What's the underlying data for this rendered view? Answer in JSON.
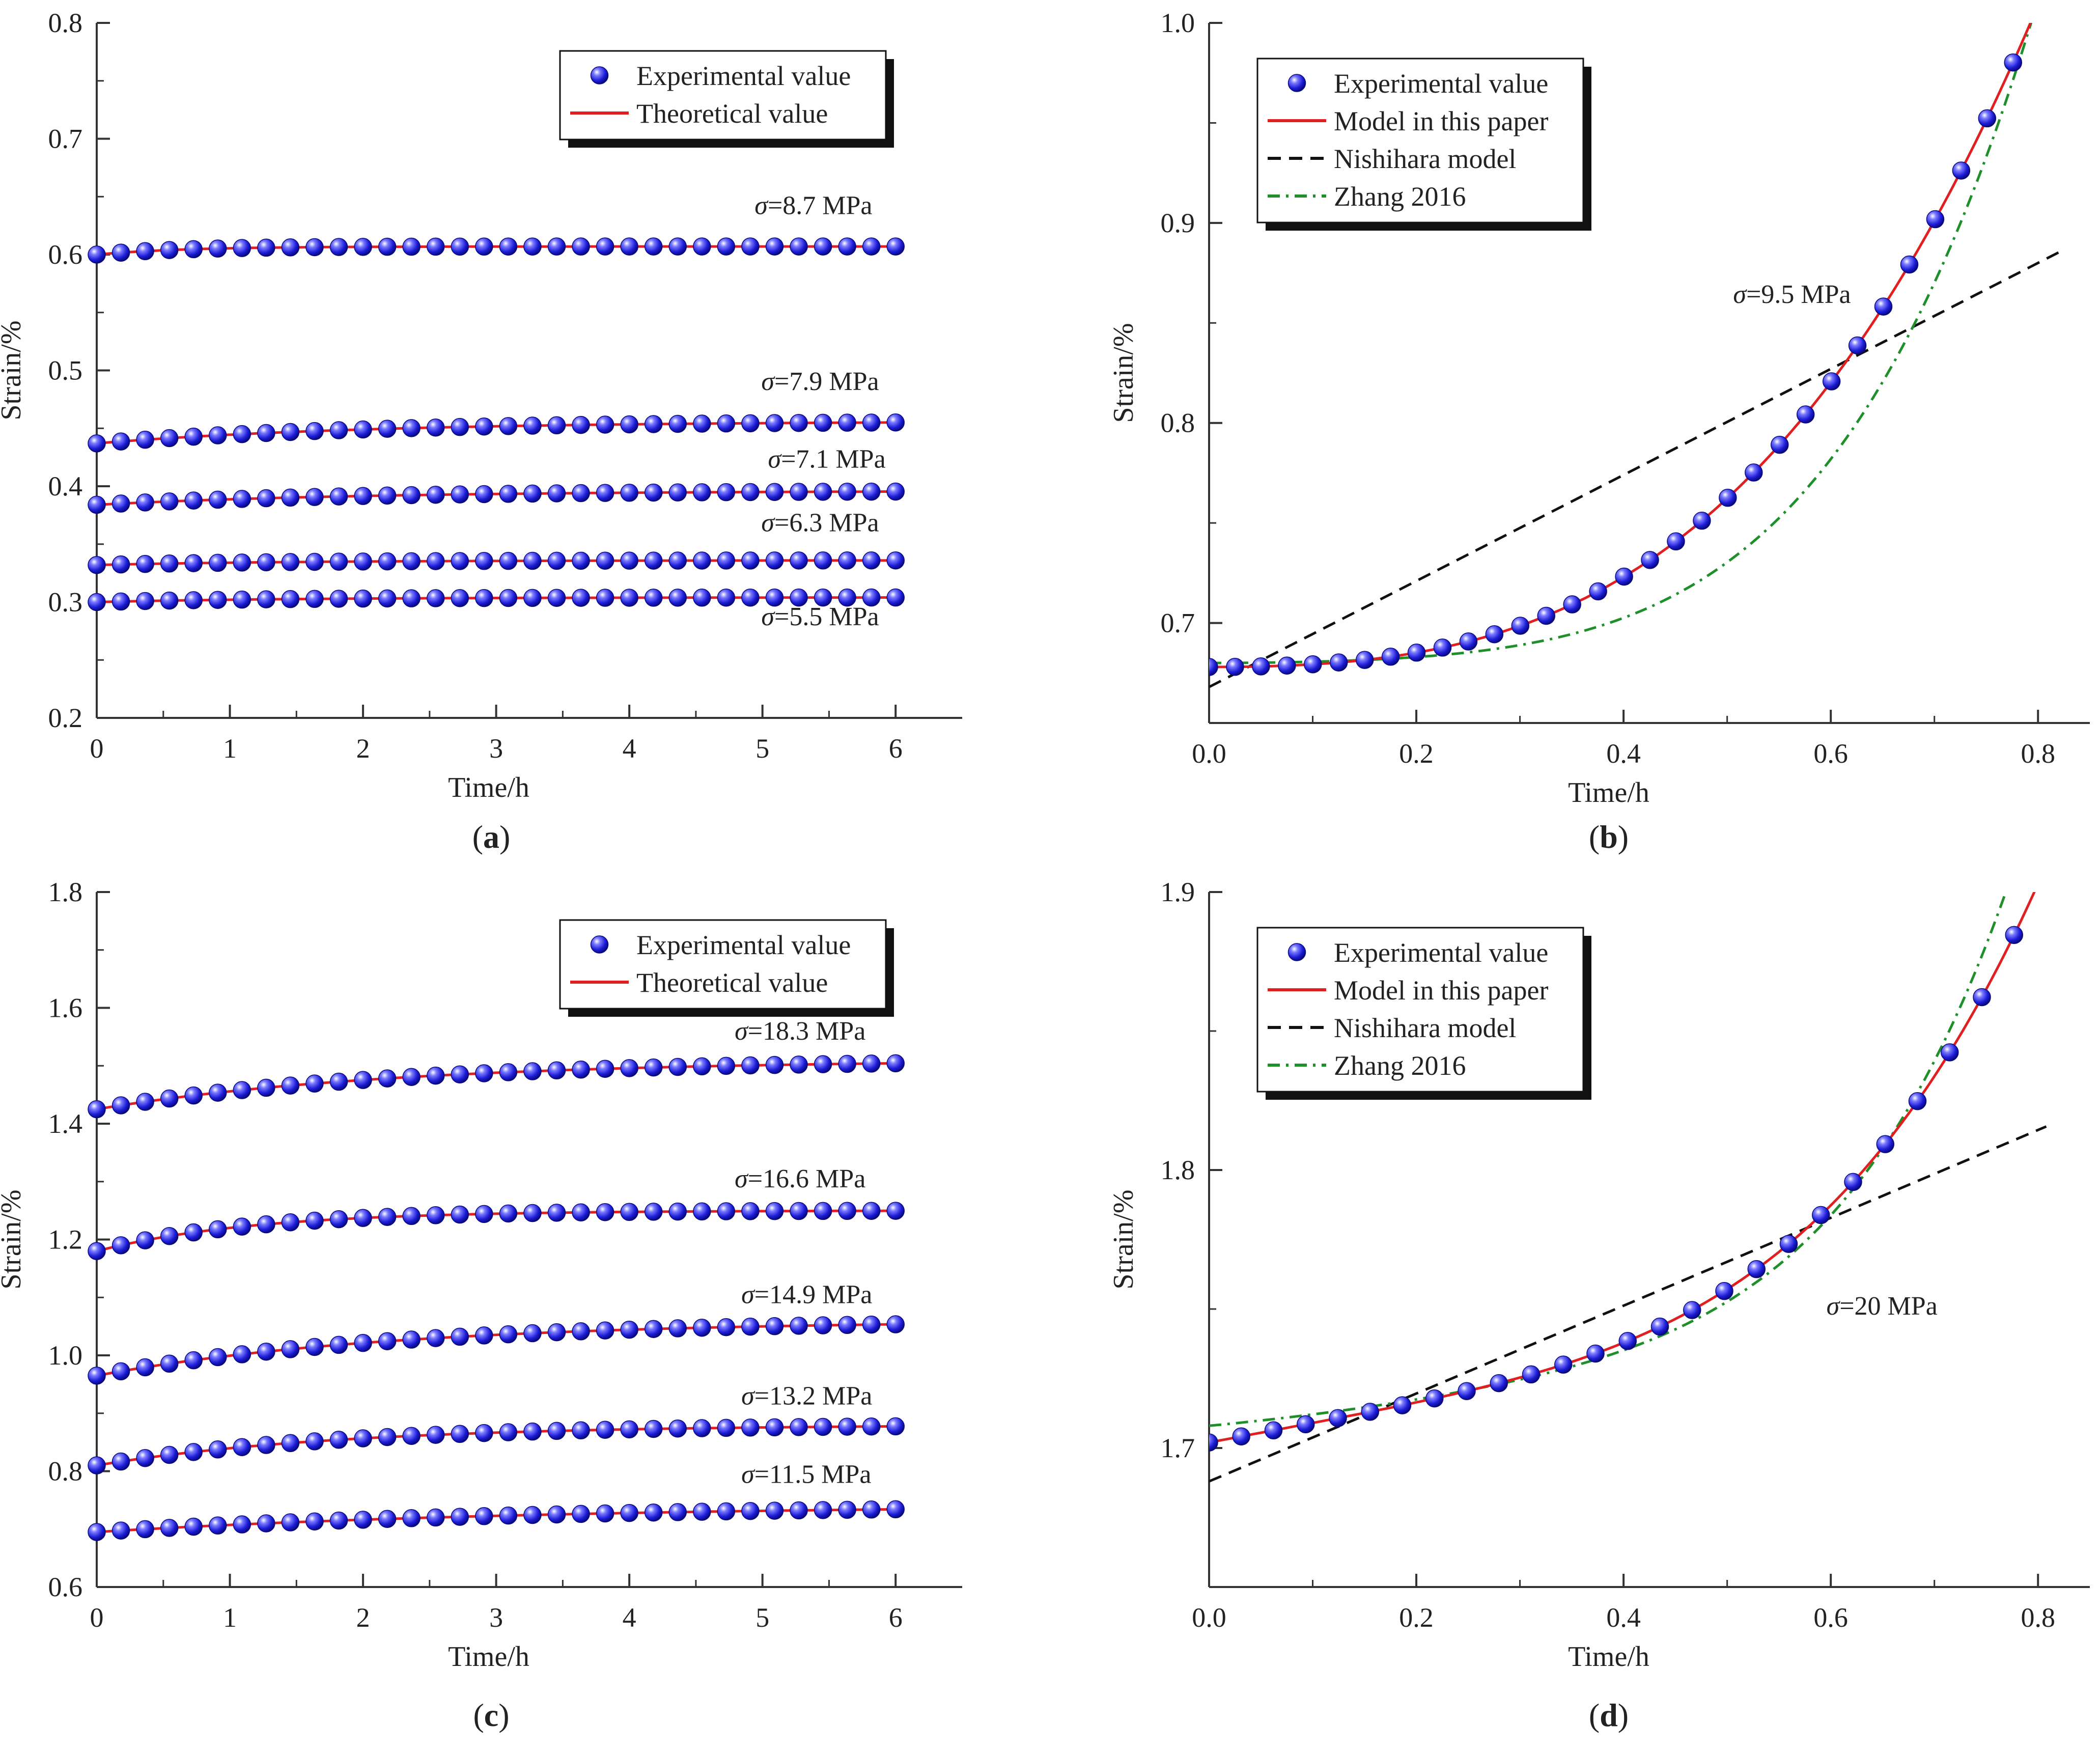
{
  "figure": {
    "panels": [
      {
        "id": "a",
        "caption_letter": "a"
      },
      {
        "id": "b",
        "caption_letter": "b"
      },
      {
        "id": "c",
        "caption_letter": "c"
      },
      {
        "id": "d",
        "caption_letter": "d"
      }
    ]
  },
  "colors": {
    "experimental": "#1c1cd6",
    "model": "#e02020",
    "nishihara": "#111111",
    "zhang": "#1f8f2a",
    "axis": "#333333"
  },
  "chart_data": [
    {
      "id": "a",
      "type": "scatter",
      "xlabel": "Time/h",
      "ylabel": "Strain/%",
      "xlim": [
        0,
        6.5
      ],
      "ylim": [
        0.2,
        0.8
      ],
      "xticks": [
        0,
        1,
        2,
        3,
        4,
        5,
        6
      ],
      "xtick_labels": [
        "0",
        "1",
        "2",
        "3",
        "4",
        "5",
        "6"
      ],
      "yticks": [
        0.2,
        0.3,
        0.4,
        0.5,
        0.6,
        0.7,
        0.8
      ],
      "ytick_labels": [
        "0.2",
        "0.3",
        "0.4",
        "0.5",
        "0.6",
        "0.7",
        "0.8"
      ],
      "legend": {
        "position": "top-right",
        "entries": [
          {
            "label": "Experimental value",
            "kind": "marker",
            "color": "#1c1cd6"
          },
          {
            "label": "Theoretical value",
            "kind": "solid",
            "color": "#e02020"
          }
        ]
      },
      "series": [
        {
          "name": "σ=5.5 MPa",
          "label": "σ=5.5 MPa",
          "label_at": [
            5.45,
            0.28
          ],
          "curve": {
            "model": "exp",
            "a": 0.3,
            "b": 0.004,
            "k": 0.7
          },
          "t_end": 6,
          "n": 34
        },
        {
          "name": "σ=6.3 MPa",
          "label": "σ=6.3 MPa",
          "label_at": [
            5.45,
            0.361
          ],
          "curve": {
            "model": "exp",
            "a": 0.332,
            "b": 0.004,
            "k": 0.7
          },
          "t_end": 6,
          "n": 34
        },
        {
          "name": "σ=7.1 MPa",
          "label": "σ=7.1 MPa",
          "label_at": [
            5.5,
            0.416
          ],
          "curve": {
            "model": "exp",
            "a": 0.384,
            "b": 0.012,
            "k": 0.5
          },
          "t_end": 6,
          "n": 34
        },
        {
          "name": "σ=7.9 MPa",
          "label": "σ=7.9 MPa",
          "label_at": [
            5.45,
            0.483
          ],
          "curve": {
            "model": "exp",
            "a": 0.437,
            "b": 0.019,
            "k": 0.5
          },
          "t_end": 6,
          "n": 34
        },
        {
          "name": "σ=8.7 MPa",
          "label": "σ=8.7 MPa",
          "label_at": [
            5.4,
            0.635
          ],
          "curve": {
            "model": "exp",
            "a": 0.6,
            "b": 0.007,
            "k": 1.5
          },
          "t_end": 6,
          "n": 34
        }
      ]
    },
    {
      "id": "b",
      "type": "scatter",
      "xlabel": "Time/h",
      "ylabel": "Strain/%",
      "xlim": [
        0,
        0.85
      ],
      "ylim": [
        0.65,
        1.0
      ],
      "xticks": [
        0.0,
        0.2,
        0.4,
        0.6,
        0.8
      ],
      "xtick_labels": [
        "0.0",
        "0.2",
        "0.4",
        "0.6",
        "0.8"
      ],
      "yticks": [
        0.7,
        0.8,
        0.9,
        1.0
      ],
      "ytick_labels": [
        "0.7",
        "0.8",
        "0.9",
        "1.0"
      ],
      "legend": {
        "position": "top-left",
        "entries": [
          {
            "label": "Experimental value",
            "kind": "marker",
            "color": "#1c1cd6"
          },
          {
            "label": "Model in this paper",
            "kind": "solid",
            "color": "#e02020"
          },
          {
            "label": "Nishihara model",
            "kind": "dash",
            "color": "#111111"
          },
          {
            "label": "Zhang 2016",
            "kind": "dashdot",
            "color": "#1f8f2a"
          }
        ]
      },
      "annotation": {
        "text": "σ=9.5 MPa",
        "at": [
          0.55,
          0.86
        ]
      },
      "experimental": {
        "x_start": 0.0,
        "x_end": 0.826,
        "n": 34,
        "curve": {
          "model": "poly",
          "c0": 0.678,
          "c1": 0.0,
          "c2": 0.1,
          "c3": 0.0,
          "p": 3.2,
          "cp": 0.545
        }
      },
      "model_curve": {
        "model": "poly",
        "c0": 0.678,
        "c1": 0.0,
        "c2": 0.1,
        "c3": 0.0,
        "p": 3.2,
        "cp": 0.545,
        "x_end": 0.826
      },
      "nishihara_curve": {
        "model": "linear",
        "y0": 0.668,
        "slope": 0.265,
        "x_end": 0.826
      },
      "zhang_curve": {
        "model": "poly",
        "c0": 0.68,
        "c1": 0.0,
        "c2": 0.06,
        "c3": 0.0,
        "p": 4.5,
        "cp": 0.8,
        "x_end": 0.826
      }
    },
    {
      "id": "c",
      "type": "scatter",
      "xlabel": "Time/h",
      "ylabel": "Strain/%",
      "xlim": [
        0,
        6.5
      ],
      "ylim": [
        0.6,
        1.8
      ],
      "xticks": [
        0,
        1,
        2,
        3,
        4,
        5,
        6
      ],
      "xtick_labels": [
        "0",
        "1",
        "2",
        "3",
        "4",
        "5",
        "6"
      ],
      "yticks": [
        0.6,
        0.8,
        1.0,
        1.2,
        1.4,
        1.6,
        1.8
      ],
      "ytick_labels": [
        "0.6",
        "0.8",
        "1.0",
        "1.2",
        "1.4",
        "1.6",
        "1.8"
      ],
      "legend": {
        "position": "top-right",
        "entries": [
          {
            "label": "Experimental value",
            "kind": "marker",
            "color": "#1c1cd6"
          },
          {
            "label": "Theoretical value",
            "kind": "solid",
            "color": "#e02020"
          }
        ]
      },
      "series": [
        {
          "name": "σ=11.5 MPa",
          "label": "σ=11.5 MPa",
          "label_at": [
            5.3,
            0.78
          ],
          "curve": {
            "model": "exp",
            "a": 0.695,
            "b": 0.047,
            "k": 0.3
          },
          "t_end": 6,
          "n": 34
        },
        {
          "name": "σ=13.2 MPa",
          "label": "σ=13.2 MPa",
          "label_at": [
            5.3,
            0.915
          ],
          "curve": {
            "model": "exp",
            "a": 0.81,
            "b": 0.07,
            "k": 0.55
          },
          "t_end": 6,
          "n": 34
        },
        {
          "name": "σ=14.9 MPa",
          "label": "σ=14.9 MPa",
          "label_at": [
            5.3,
            1.09
          ],
          "curve": {
            "model": "exp",
            "a": 0.965,
            "b": 0.095,
            "k": 0.45
          },
          "t_end": 6,
          "n": 34
        },
        {
          "name": "σ=16.6 MPa",
          "label": "σ=16.6 MPa",
          "label_at": [
            5.25,
            1.29
          ],
          "curve": {
            "model": "exp",
            "a": 1.18,
            "b": 0.07,
            "k": 0.85
          },
          "t_end": 6,
          "n": 34
        },
        {
          "name": "σ=18.3 MPa",
          "label": "σ=18.3 MPa",
          "label_at": [
            5.25,
            1.545
          ],
          "curve": {
            "model": "exp",
            "a": 1.425,
            "b": 0.085,
            "k": 0.45
          },
          "t_end": 6,
          "n": 34
        }
      ]
    },
    {
      "id": "d",
      "type": "scatter",
      "xlabel": "Time/h",
      "ylabel": "Strain/%",
      "xlim": [
        0,
        0.85
      ],
      "ylim": [
        1.65,
        1.9
      ],
      "xticks": [
        0.0,
        0.2,
        0.4,
        0.6,
        0.8
      ],
      "xtick_labels": [
        "0.0",
        "0.2",
        "0.4",
        "0.6",
        "0.8"
      ],
      "yticks": [
        1.7,
        1.8,
        1.9
      ],
      "ytick_labels": [
        "1.7",
        "1.8",
        "1.9"
      ],
      "legend": {
        "position": "top-left",
        "entries": [
          {
            "label": "Experimental value",
            "kind": "marker",
            "color": "#1c1cd6"
          },
          {
            "label": "Model in this paper",
            "kind": "solid",
            "color": "#e02020"
          },
          {
            "label": "Nishihara model",
            "kind": "dash",
            "color": "#111111"
          },
          {
            "label": "Zhang 2016",
            "kind": "dashdot",
            "color": "#1f8f2a"
          }
        ]
      },
      "annotation": {
        "text": "σ=20 MPa",
        "at": [
          0.64,
          1.748
        ]
      },
      "experimental": {
        "x_start": 0.0,
        "x_end": 0.808,
        "n": 27,
        "curve": {
          "model": "poly",
          "c0": 1.702,
          "c1": 0.07,
          "c2": 0.0,
          "c3": 0.0,
          "p": 4.2,
          "cp": 0.37
        }
      },
      "model_curve": {
        "model": "poly",
        "c0": 1.702,
        "c1": 0.07,
        "c2": 0.0,
        "c3": 0.0,
        "p": 4.2,
        "cp": 0.37,
        "x_end": 0.808
      },
      "nishihara_curve": {
        "model": "linear",
        "y0": 1.688,
        "slope": 0.158,
        "x_end": 0.808
      },
      "zhang_curve": {
        "model": "poly",
        "c0": 1.708,
        "c1": 0.035,
        "c2": 0.06,
        "c3": 0.0,
        "p": 5.5,
        "cp": 0.55,
        "x_end": 0.808
      }
    }
  ]
}
